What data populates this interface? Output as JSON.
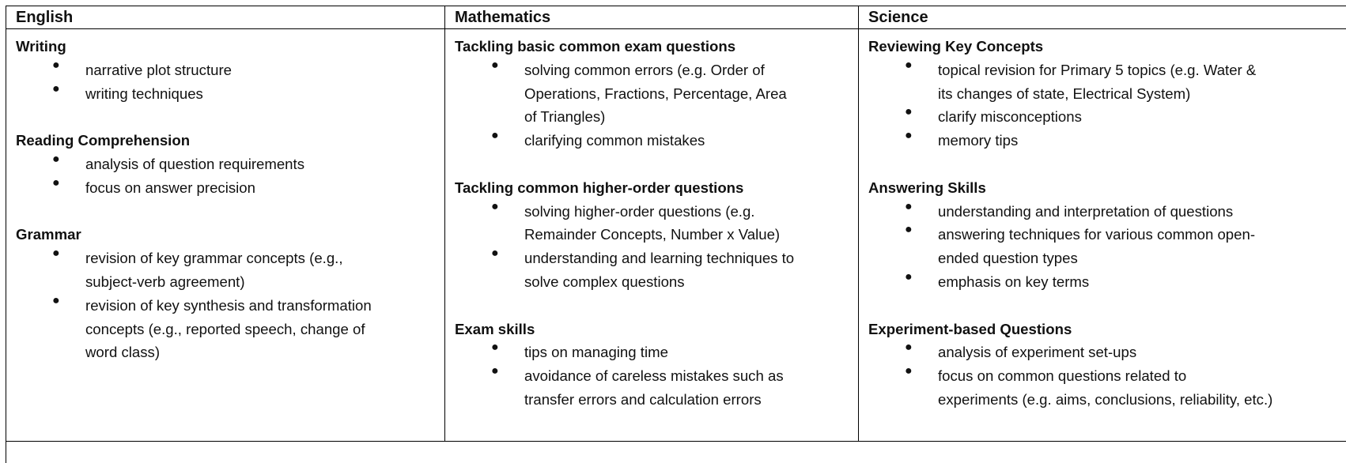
{
  "columns": [
    {
      "header": "English",
      "sections": [
        {
          "title": "Writing",
          "items": [
            [
              "narrative plot structure"
            ],
            [
              "writing techniques"
            ]
          ]
        },
        {
          "title": "Reading Comprehension",
          "items": [
            [
              "analysis of question requirements"
            ],
            [
              "focus on answer precision"
            ]
          ]
        },
        {
          "title": "Grammar",
          "items": [
            [
              "revision of key grammar concepts (e.g.,",
              "subject-verb agreement)"
            ],
            [
              "revision of key synthesis and transformation",
              "concepts (e.g., reported speech, change of",
              "word class)"
            ]
          ]
        }
      ]
    },
    {
      "header": "Mathematics",
      "sections": [
        {
          "title": "Tackling basic common exam questions",
          "items": [
            [
              "solving common errors (e.g. Order of",
              "Operations, Fractions, Percentage, Area",
              "of Triangles)"
            ],
            [
              "clarifying common mistakes"
            ]
          ]
        },
        {
          "title": "Tackling common higher-order questions",
          "items": [
            [
              "solving higher-order questions (e.g.",
              "Remainder Concepts, Number x Value)"
            ],
            [
              "understanding and learning techniques to",
              "solve complex questions"
            ]
          ]
        },
        {
          "title": "Exam skills",
          "items": [
            [
              "tips on managing time"
            ],
            [
              "avoidance of careless mistakes such as",
              "transfer errors and calculation errors"
            ]
          ]
        }
      ]
    },
    {
      "header": "Science",
      "sections": [
        {
          "title": "Reviewing Key Concepts",
          "items": [
            [
              "topical revision for Primary 5 topics (e.g. Water &",
              "its changes of state, Electrical System)"
            ],
            [
              "clarify misconceptions"
            ],
            [
              "memory tips"
            ]
          ]
        },
        {
          "title": "Answering Skills",
          "items": [
            [
              "understanding and interpretation of questions"
            ],
            [
              "answering techniques for various common open-",
              "ended question types"
            ],
            [
              "emphasis on key terms"
            ]
          ]
        },
        {
          "title": "Experiment-based Questions",
          "items": [
            [
              "analysis of experiment set-ups"
            ],
            [
              "focus on common questions related to",
              "experiments (e.g. aims, conclusions, reliability, etc.)"
            ]
          ]
        }
      ]
    }
  ],
  "bullet_glyph": "●"
}
